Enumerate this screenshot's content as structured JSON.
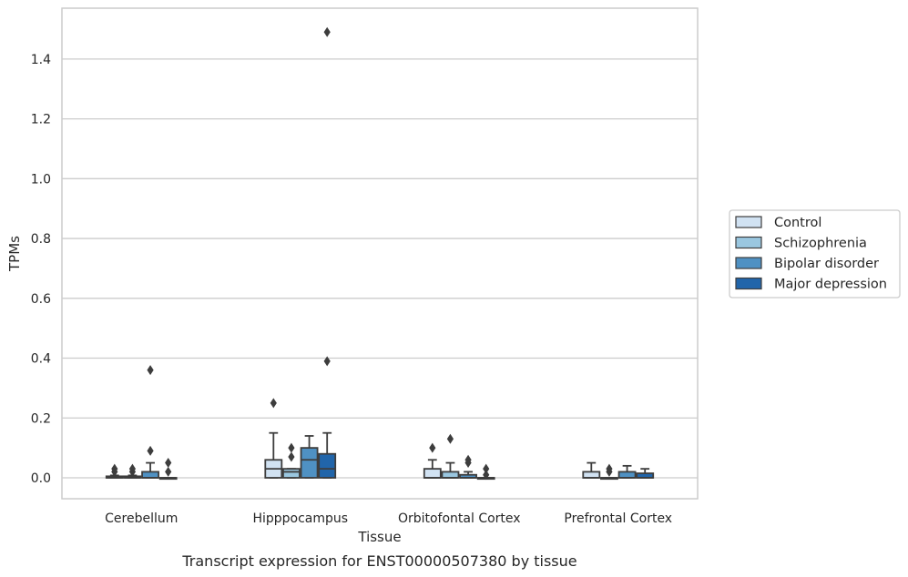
{
  "chart_data": {
    "type": "box",
    "title": "",
    "caption": "Transcript expression for ENST00000507380 by tissue",
    "xlabel": "Tissue",
    "ylabel": "TPMs",
    "ylim": [
      -0.07,
      1.57
    ],
    "yticks": [
      0.0,
      0.2,
      0.4,
      0.6,
      0.8,
      1.0,
      1.2,
      1.4
    ],
    "ytick_labels": [
      "0.0",
      "0.2",
      "0.4",
      "0.6",
      "0.8",
      "1.0",
      "1.2",
      "1.4"
    ],
    "grid": "horizontal",
    "legend_position": "right",
    "categories": [
      "Cerebellum",
      "Hipppocampus",
      "Orbitofontal Cortex",
      "Prefrontal Cortex"
    ],
    "series": [
      {
        "name": "Control",
        "color": "#d1e2f2",
        "boxes": [
          {
            "whislo": 0.0,
            "q1": 0.0,
            "med": 0.0,
            "q3": 0.005,
            "whishi": 0.008,
            "fliers": [
              0.02,
              0.03
            ]
          },
          {
            "whislo": 0.0,
            "q1": 0.0,
            "med": 0.03,
            "q3": 0.06,
            "whishi": 0.15,
            "fliers": [
              0.25
            ]
          },
          {
            "whislo": 0.0,
            "q1": 0.0,
            "med": 0.0,
            "q3": 0.03,
            "whishi": 0.06,
            "fliers": [
              0.1
            ]
          },
          {
            "whislo": 0.0,
            "q1": 0.0,
            "med": 0.0,
            "q3": 0.02,
            "whishi": 0.05,
            "fliers": []
          }
        ]
      },
      {
        "name": "Schizophrenia",
        "color": "#9ac7e0",
        "boxes": [
          {
            "whislo": 0.0,
            "q1": 0.0,
            "med": 0.0,
            "q3": 0.005,
            "whishi": 0.008,
            "fliers": [
              0.02,
              0.03
            ]
          },
          {
            "whislo": 0.0,
            "q1": 0.0,
            "med": 0.02,
            "q3": 0.03,
            "whishi": 0.03,
            "fliers": [
              0.07,
              0.1
            ]
          },
          {
            "whislo": 0.0,
            "q1": 0.0,
            "med": 0.0,
            "q3": 0.02,
            "whishi": 0.05,
            "fliers": [
              0.13
            ]
          },
          {
            "whislo": 0.0,
            "q1": 0.0,
            "med": 0.0,
            "q3": 0.0,
            "whishi": 0.0,
            "fliers": [
              0.02,
              0.03
            ]
          }
        ]
      },
      {
        "name": "Bipolar disorder",
        "color": "#4f91c3",
        "boxes": [
          {
            "whislo": 0.0,
            "q1": 0.0,
            "med": 0.0,
            "q3": 0.02,
            "whishi": 0.05,
            "fliers": [
              0.09,
              0.36
            ]
          },
          {
            "whislo": 0.0,
            "q1": 0.0,
            "med": 0.06,
            "q3": 0.1,
            "whishi": 0.14,
            "fliers": []
          },
          {
            "whislo": 0.0,
            "q1": 0.0,
            "med": 0.0,
            "q3": 0.01,
            "whishi": 0.02,
            "fliers": [
              0.05,
              0.06
            ]
          },
          {
            "whislo": 0.0,
            "q1": 0.0,
            "med": 0.0,
            "q3": 0.02,
            "whishi": 0.04,
            "fliers": []
          }
        ]
      },
      {
        "name": "Major depression",
        "color": "#2165aa",
        "boxes": [
          {
            "whislo": 0.0,
            "q1": 0.0,
            "med": 0.0,
            "q3": 0.0,
            "whishi": 0.0,
            "fliers": [
              0.02,
              0.05
            ]
          },
          {
            "whislo": 0.0,
            "q1": 0.0,
            "med": 0.03,
            "q3": 0.08,
            "whishi": 0.15,
            "fliers": [
              0.39,
              1.49
            ]
          },
          {
            "whislo": 0.0,
            "q1": 0.0,
            "med": 0.0,
            "q3": 0.0,
            "whishi": 0.0,
            "fliers": [
              0.01,
              0.03
            ]
          },
          {
            "whislo": 0.0,
            "q1": 0.0,
            "med": 0.0,
            "q3": 0.015,
            "whishi": 0.03,
            "fliers": []
          }
        ]
      }
    ]
  }
}
